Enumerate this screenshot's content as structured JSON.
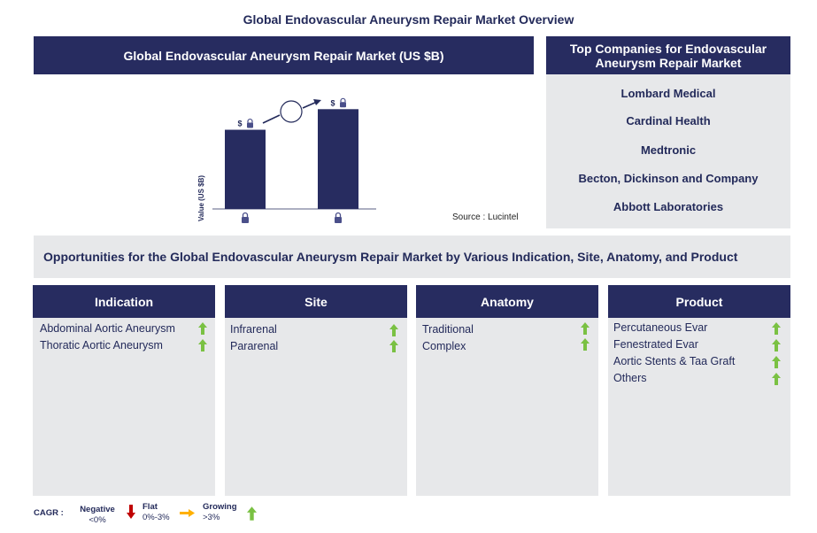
{
  "page": {
    "title": "Global Endovascular Aneurysm Repair Market Overview"
  },
  "market_chart": {
    "header": "Global Endovascular Aneurysm Repair Market (US $B)",
    "ylabel": "Value (US $B)",
    "bar_labels": [
      "$",
      "$"
    ],
    "source": "Source : Lucintel"
  },
  "chart_data": {
    "type": "bar",
    "title": "Global Endovascular Aneurysm Repair Market (US $B)",
    "xlabel": "",
    "ylabel": "Value (US $B)",
    "categories": [
      "",
      ""
    ],
    "values": [
      1.0,
      1.26
    ],
    "data_labels": [
      "$",
      "$"
    ],
    "grid": false,
    "legend": "none",
    "bar_color": "#272c60"
  },
  "companies": {
    "header": "Top Companies for Endovascular Aneurysm Repair Market",
    "items": [
      "Lombard Medical",
      "Cardinal Health",
      "Medtronic",
      "Becton, Dickinson and Company",
      "Abbott Laboratories"
    ]
  },
  "opportunities": {
    "text": "Opportunities for the Global Endovascular Aneurysm Repair Market by Various Indication, Site, Anatomy, and Product"
  },
  "segments": [
    {
      "title": "Indication",
      "items": [
        "Abdominal Aortic Aneurysm",
        "Thoratic Aortic Aneurysm"
      ],
      "trends": [
        "growing",
        "growing"
      ]
    },
    {
      "title": "Site",
      "items": [
        "Infrarenal",
        "Pararenal"
      ],
      "trends": [
        "growing",
        "growing"
      ]
    },
    {
      "title": "Anatomy",
      "items": [
        "Traditional",
        "Complex"
      ],
      "trends": [
        "growing",
        "growing"
      ]
    },
    {
      "title": "Product",
      "items": [
        "Percutaneous Evar",
        "Fenestrated Evar",
        "Aortic Stents & Taa Graft",
        "Others"
      ],
      "trends": [
        "growing",
        "growing",
        "growing",
        "growing"
      ]
    }
  ],
  "legend": {
    "cagr_label": "CAGR :",
    "negative": {
      "label": "Negative",
      "range": "<0%",
      "icon": "down-arrow-icon",
      "color": "#c00000"
    },
    "flat": {
      "label": "Flat",
      "range": "0%-3%",
      "icon": "right-arrow-icon",
      "color": "#ffb000"
    },
    "growing": {
      "label": "Growing",
      "range": ">3%",
      "icon": "up-arrow-icon",
      "color": "#7ac143"
    }
  },
  "colors": {
    "navy": "#272c60",
    "panel_grey": "#e7e8ea",
    "text_navy": "#232a5a",
    "growth_green": "#7ac143"
  }
}
